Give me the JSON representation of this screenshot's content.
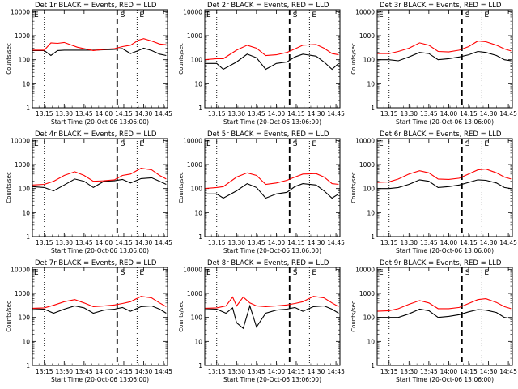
{
  "figure": {
    "background": "#ffffff",
    "event_color": "#000000",
    "lld_color": "#ff0000",
    "x_ticks": [
      "13:15",
      "13:30",
      "13:45",
      "14:00",
      "14:15",
      "14:30",
      "14:45"
    ],
    "y_ticks": [
      "1",
      "10",
      "100",
      "1000",
      "10000"
    ],
    "ylabel": "Counts/sec",
    "xlabel": "Start Time (20-Oct-06 13:06:00)",
    "marker_S": "S",
    "marker_E": "E"
  },
  "chart_data": [
    {
      "type": "line",
      "title": "Det 1r BLACK = Events, RED = LLD",
      "xlabel": "Start Time (20-Oct-06 13:06:00)",
      "ylabel": "Counts/sec",
      "xlim": [
        "13:06",
        "14:48"
      ],
      "ylim": [
        1,
        12000
      ],
      "y_scale": "log",
      "x": [
        "13:06",
        "13:15",
        "13:20",
        "13:25",
        "13:30",
        "13:40",
        "13:52",
        "14:00",
        "14:08",
        "14:14",
        "14:20",
        "14:26",
        "14:30",
        "14:36",
        "14:42",
        "14:47"
      ],
      "series": [
        {
          "name": "Events",
          "color": "#000000",
          "values": [
            240,
            240,
            150,
            240,
            250,
            250,
            250,
            260,
            270,
            290,
            180,
            240,
            300,
            240,
            170,
            150
          ]
        },
        {
          "name": "LLD",
          "color": "#ff0000",
          "values": [
            250,
            250,
            500,
            480,
            520,
            330,
            240,
            270,
            290,
            350,
            400,
            650,
            750,
            600,
            450,
            420
          ]
        }
      ],
      "vlines": {
        "dotted": [
          "13:15",
          "14:25"
        ],
        "dashed": "14:10"
      }
    },
    {
      "type": "line",
      "title": "Det 2r BLACK = Events, RED = LLD",
      "xlabel": "Start Time (20-Oct-06 13:06:00)",
      "ylabel": "Counts/sec",
      "xlim": [
        "13:06",
        "14:48"
      ],
      "ylim": [
        1,
        12000
      ],
      "y_scale": "log",
      "x": [
        "13:06",
        "13:15",
        "13:20",
        "13:30",
        "13:38",
        "13:45",
        "13:52",
        "14:00",
        "14:08",
        "14:14",
        "14:20",
        "14:30",
        "14:36",
        "14:42",
        "14:47"
      ],
      "series": [
        {
          "name": "Events",
          "color": "#000000",
          "values": [
            70,
            70,
            40,
            80,
            170,
            120,
            40,
            70,
            80,
            130,
            170,
            140,
            80,
            40,
            70
          ]
        },
        {
          "name": "LLD",
          "color": "#ff0000",
          "values": [
            100,
            110,
            110,
            250,
            400,
            300,
            150,
            160,
            200,
            280,
            400,
            430,
            300,
            180,
            160
          ]
        }
      ],
      "vlines": {
        "dotted": [
          "13:15",
          "14:25"
        ],
        "dashed": "14:10"
      }
    },
    {
      "type": "line",
      "title": "Det 3r BLACK = Events, RED = LLD",
      "xlabel": "Start Time (20-Oct-06 13:06:00)",
      "ylabel": "Counts/sec",
      "xlim": [
        "13:06",
        "14:48"
      ],
      "ylim": [
        1,
        12000
      ],
      "y_scale": "log",
      "x": [
        "13:06",
        "13:15",
        "13:22",
        "13:30",
        "13:38",
        "13:45",
        "13:52",
        "14:00",
        "14:08",
        "14:15",
        "14:22",
        "14:28",
        "14:36",
        "14:42",
        "14:47"
      ],
      "series": [
        {
          "name": "Events",
          "color": "#000000",
          "values": [
            100,
            100,
            90,
            130,
            200,
            180,
            100,
            110,
            130,
            160,
            220,
            200,
            150,
            100,
            90
          ]
        },
        {
          "name": "LLD",
          "color": "#ff0000",
          "values": [
            180,
            180,
            220,
            300,
            500,
            400,
            220,
            210,
            250,
            350,
            600,
            560,
            400,
            280,
            230
          ]
        }
      ],
      "vlines": {
        "dotted": [
          "13:15",
          "14:25"
        ],
        "dashed": "14:10"
      }
    },
    {
      "type": "line",
      "title": "Det 4r BLACK = Events, RED = LLD",
      "xlabel": "Start Time (20-Oct-06 13:06:00)",
      "ylabel": "Counts/sec",
      "xlim": [
        "13:06",
        "14:48"
      ],
      "ylim": [
        1,
        12000
      ],
      "y_scale": "log",
      "x": [
        "13:06",
        "13:15",
        "13:22",
        "13:30",
        "13:38",
        "13:45",
        "13:52",
        "14:00",
        "14:08",
        "14:14",
        "14:20",
        "14:28",
        "14:36",
        "14:42",
        "14:47"
      ],
      "series": [
        {
          "name": "Events",
          "color": "#000000",
          "values": [
            120,
            110,
            80,
            140,
            250,
            200,
            110,
            200,
            210,
            240,
            170,
            260,
            280,
            200,
            150
          ]
        },
        {
          "name": "LLD",
          "color": "#ff0000",
          "values": [
            140,
            150,
            200,
            350,
            500,
            350,
            200,
            210,
            230,
            350,
            400,
            700,
            600,
            350,
            250
          ]
        }
      ],
      "vlines": {
        "dotted": [
          "13:15",
          "14:25"
        ],
        "dashed": "14:10"
      }
    },
    {
      "type": "line",
      "title": "Det 5r BLACK = Events, RED = LLD",
      "xlabel": "Start Time (20-Oct-06 13:06:00)",
      "ylabel": "Counts/sec",
      "xlim": [
        "13:06",
        "14:48"
      ],
      "ylim": [
        1,
        12000
      ],
      "y_scale": "log",
      "x": [
        "13:06",
        "13:15",
        "13:20",
        "13:30",
        "13:38",
        "13:45",
        "13:52",
        "14:00",
        "14:08",
        "14:14",
        "14:20",
        "14:30",
        "14:36",
        "14:42",
        "14:47"
      ],
      "series": [
        {
          "name": "Events",
          "color": "#000000",
          "values": [
            60,
            60,
            40,
            80,
            160,
            110,
            40,
            60,
            70,
            120,
            160,
            140,
            80,
            40,
            60
          ]
        },
        {
          "name": "LLD",
          "color": "#ff0000",
          "values": [
            100,
            110,
            120,
            300,
            450,
            350,
            150,
            170,
            220,
            300,
            400,
            420,
            300,
            160,
            150
          ]
        }
      ],
      "vlines": {
        "dotted": [
          "13:15",
          "14:25"
        ],
        "dashed": "14:10"
      }
    },
    {
      "type": "line",
      "title": "Det 6r BLACK = Events, RED = LLD",
      "xlabel": "Start Time (20-Oct-06 13:06:00)",
      "ylabel": "Counts/sec",
      "xlim": [
        "13:06",
        "14:48"
      ],
      "ylim": [
        1,
        12000
      ],
      "y_scale": "log",
      "x": [
        "13:06",
        "13:15",
        "13:22",
        "13:30",
        "13:38",
        "13:45",
        "13:52",
        "14:00",
        "14:08",
        "14:15",
        "14:22",
        "14:28",
        "14:36",
        "14:42",
        "14:47"
      ],
      "series": [
        {
          "name": "Events",
          "color": "#000000",
          "values": [
            100,
            100,
            110,
            150,
            230,
            200,
            110,
            120,
            140,
            180,
            230,
            220,
            170,
            110,
            100
          ]
        },
        {
          "name": "LLD",
          "color": "#ff0000",
          "values": [
            180,
            190,
            250,
            400,
            550,
            450,
            250,
            240,
            270,
            400,
            600,
            650,
            450,
            300,
            250
          ]
        }
      ],
      "vlines": {
        "dotted": [
          "13:15",
          "14:25"
        ],
        "dashed": "14:10"
      }
    },
    {
      "type": "line",
      "title": "Det 7r BLACK = Events, RED = LLD",
      "xlabel": "Start Time (20-Oct-06 13:06:00)",
      "ylabel": "Counts/sec",
      "xlim": [
        "13:06",
        "14:48"
      ],
      "ylim": [
        1,
        12000
      ],
      "y_scale": "log",
      "x": [
        "13:06",
        "13:15",
        "13:22",
        "13:30",
        "13:38",
        "13:45",
        "13:52",
        "14:00",
        "14:08",
        "14:14",
        "14:20",
        "14:28",
        "14:36",
        "14:42",
        "14:47"
      ],
      "series": [
        {
          "name": "Events",
          "color": "#000000",
          "values": [
            230,
            220,
            150,
            220,
            300,
            250,
            150,
            200,
            220,
            260,
            180,
            280,
            300,
            220,
            150
          ]
        },
        {
          "name": "LLD",
          "color": "#ff0000",
          "values": [
            240,
            250,
            320,
            450,
            550,
            400,
            280,
            300,
            330,
            380,
            450,
            750,
            650,
            400,
            280
          ]
        }
      ],
      "vlines": {
        "dotted": [
          "13:15",
          "14:25"
        ],
        "dashed": "14:10"
      }
    },
    {
      "type": "line",
      "title": "Det 8r BLACK = Events, RED = LLD",
      "xlabel": "Start Time (20-Oct-06 13:06:00)",
      "ylabel": "Counts/sec",
      "xlim": [
        "13:06",
        "14:48"
      ],
      "ylim": [
        1,
        12000
      ],
      "y_scale": "log",
      "x": [
        "13:06",
        "13:15",
        "13:22",
        "13:27",
        "13:30",
        "13:35",
        "13:40",
        "13:45",
        "13:52",
        "14:00",
        "14:08",
        "14:14",
        "14:20",
        "14:28",
        "14:36",
        "14:42",
        "14:47"
      ],
      "series": [
        {
          "name": "Events",
          "color": "#000000",
          "values": [
            230,
            220,
            150,
            250,
            60,
            35,
            300,
            40,
            150,
            200,
            220,
            260,
            180,
            280,
            300,
            220,
            150
          ]
        },
        {
          "name": "LLD",
          "color": "#ff0000",
          "values": [
            240,
            250,
            300,
            700,
            300,
            700,
            400,
            300,
            280,
            300,
            330,
            380,
            450,
            750,
            650,
            400,
            280
          ]
        }
      ],
      "vlines": {
        "dotted": [
          "13:15",
          "14:25"
        ],
        "dashed": "14:10"
      }
    },
    {
      "type": "line",
      "title": "Det 9r BLACK = Events, RED = LLD",
      "xlabel": "Start Time (20-Oct-06 13:06:00)",
      "ylabel": "Counts/sec",
      "xlim": [
        "13:06",
        "14:48"
      ],
      "ylim": [
        1,
        12000
      ],
      "y_scale": "log",
      "x": [
        "13:06",
        "13:15",
        "13:22",
        "13:30",
        "13:38",
        "13:45",
        "13:52",
        "14:00",
        "14:08",
        "14:15",
        "14:22",
        "14:28",
        "14:36",
        "14:42",
        "14:47"
      ],
      "series": [
        {
          "name": "Events",
          "color": "#000000",
          "values": [
            100,
            100,
            100,
            140,
            220,
            190,
            100,
            110,
            130,
            170,
            210,
            200,
            160,
            100,
            90
          ]
        },
        {
          "name": "LLD",
          "color": "#ff0000",
          "values": [
            180,
            190,
            230,
            350,
            500,
            400,
            230,
            230,
            260,
            380,
            550,
            600,
            420,
            280,
            230
          ]
        }
      ],
      "vlines": {
        "dotted": [
          "13:15",
          "14:25"
        ],
        "dashed": "14:10"
      }
    }
  ]
}
